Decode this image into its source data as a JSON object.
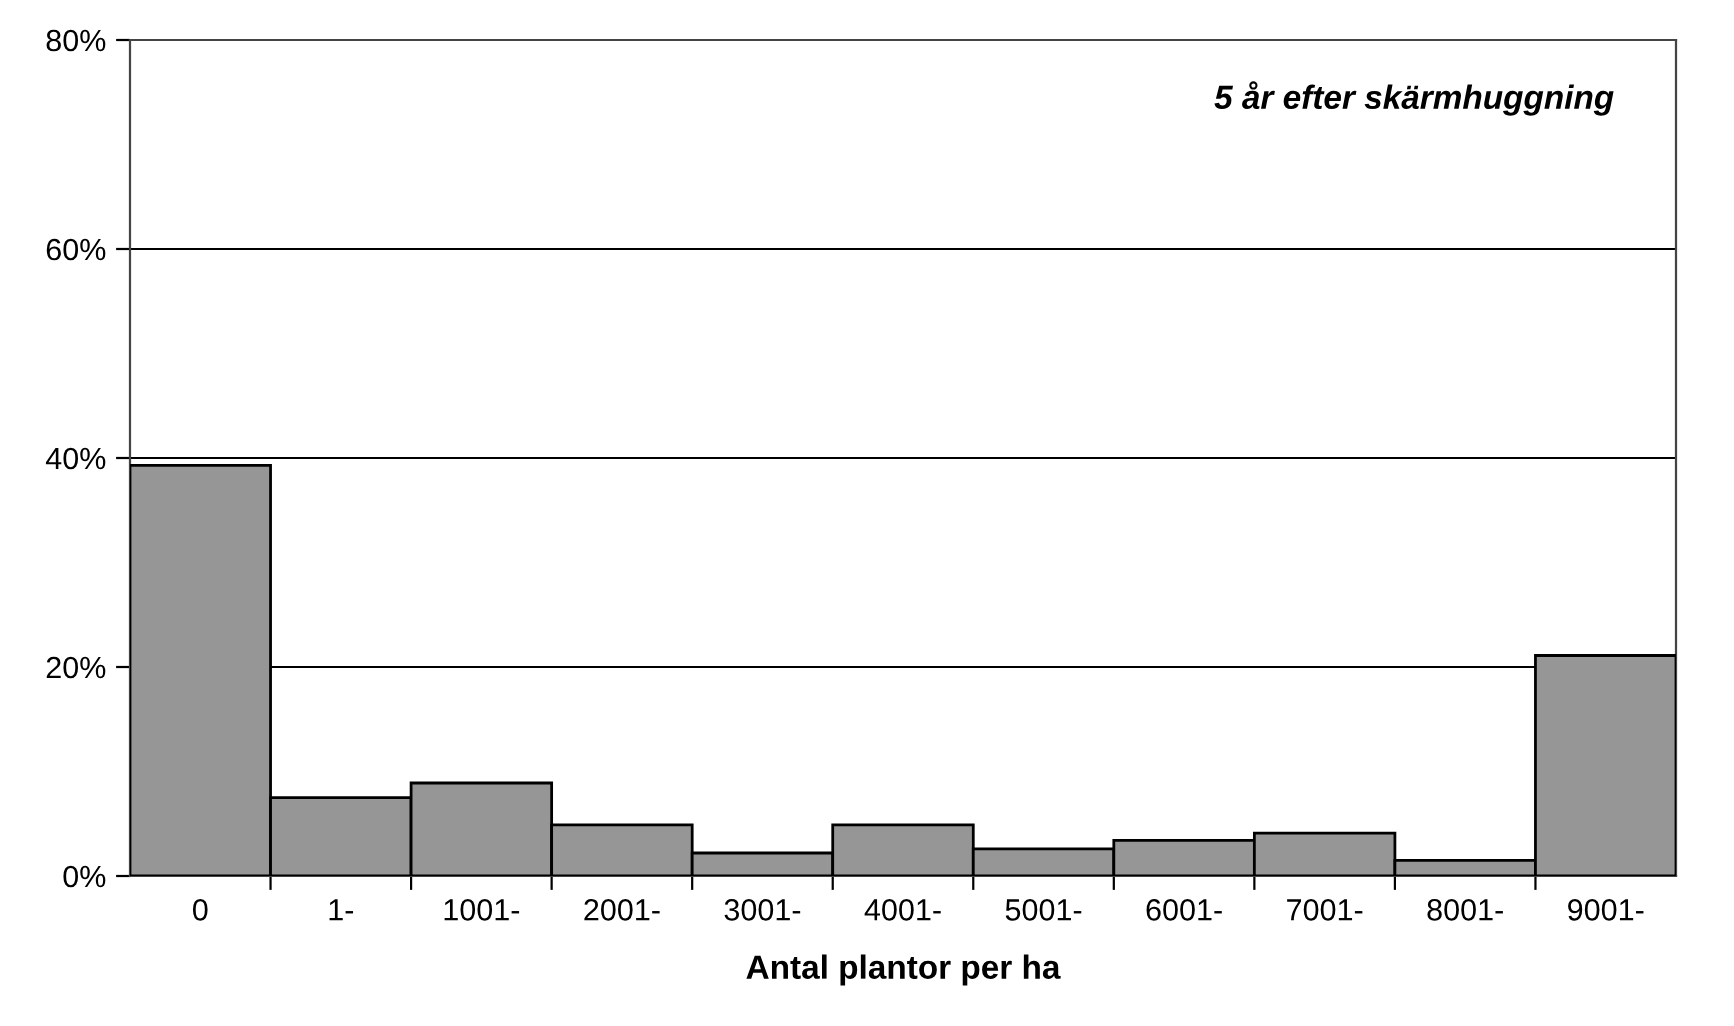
{
  "chart_data": {
    "type": "bar",
    "xlabel": "Antal plantor per ha",
    "annotations": [
      "5 år efter skärmhuggning"
    ],
    "categories": [
      "0",
      "1-",
      "1001-",
      "2001-",
      "3001-",
      "4001-",
      "5001-",
      "6001-",
      "7001-",
      "8001-",
      "9001-"
    ],
    "values": [
      39.3,
      7.5,
      8.9,
      4.9,
      2.2,
      4.9,
      2.6,
      3.4,
      4.1,
      1.5,
      21.1
    ],
    "color": "#969696",
    "ylim": [
      0,
      80
    ],
    "yticks": [
      {
        "value": 0,
        "label": "0%"
      },
      {
        "value": 20,
        "label": "20%"
      },
      {
        "value": 40,
        "label": "40%"
      },
      {
        "value": 60,
        "label": "60%"
      },
      {
        "value": 80,
        "label": "80%"
      }
    ],
    "grid": "y",
    "legend": false
  }
}
